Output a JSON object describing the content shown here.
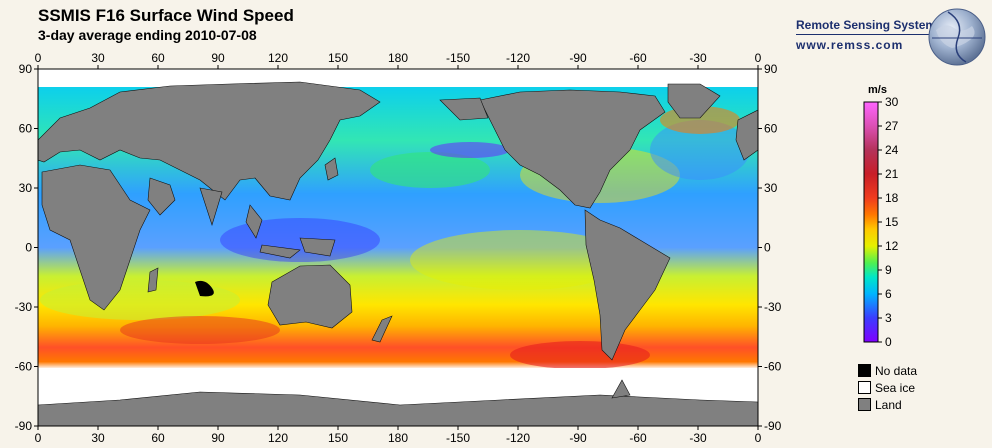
{
  "header": {
    "title": "SSMIS F16 Surface Wind Speed",
    "subtitle": "3-day average ending 2010-07-08"
  },
  "brand": {
    "name": "Remote Sensing Systems",
    "url": "www.remss.com",
    "logo_icon": "globe-icon"
  },
  "map": {
    "lon_ticks": [
      "0",
      "30",
      "60",
      "90",
      "120",
      "150",
      "180",
      "-150",
      "-120",
      "-90",
      "-60",
      "-30",
      "0"
    ],
    "lat_ticks": [
      "90",
      "60",
      "30",
      "0",
      "-30",
      "-60",
      "-90"
    ],
    "colors": {
      "land": "#808080",
      "sea_ice": "#ffffff",
      "no_data": "#000000"
    }
  },
  "colorbar": {
    "units": "m/s",
    "ticks": [
      "30",
      "27",
      "24",
      "21",
      "18",
      "15",
      "12",
      "9",
      "6",
      "3",
      "0"
    ],
    "range": [
      0,
      30
    ]
  },
  "legend": [
    {
      "label": "No data",
      "color": "#000000"
    },
    {
      "label": "Sea ice",
      "color": "#ffffff"
    },
    {
      "label": "Land",
      "color": "#808080"
    }
  ]
}
